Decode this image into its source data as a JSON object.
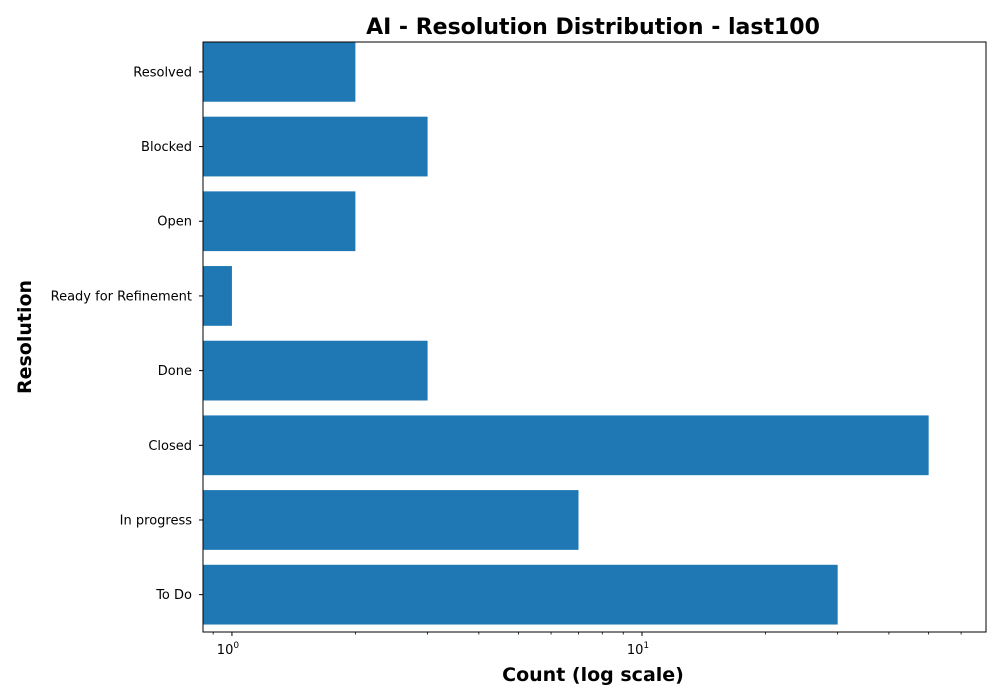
{
  "chart_data": {
    "type": "bar",
    "orientation": "horizontal",
    "title": "AI - Resolution Distribution - last100",
    "xlabel": "Count (log scale)",
    "ylabel": "Resolution",
    "xscale": "log",
    "xlim": [
      0.85,
      69
    ],
    "categories": [
      "To Do",
      "In progress",
      "Closed",
      "Done",
      "Ready for Refinement",
      "Open",
      "Blocked",
      "Resolved"
    ],
    "values": [
      30,
      7,
      50,
      3,
      1,
      2,
      3,
      2
    ],
    "bar_color": "#1f77b4",
    "x_major_ticks": [
      {
        "value": 1,
        "base": "10",
        "exp": "0"
      },
      {
        "value": 10,
        "base": "10",
        "exp": "1"
      }
    ],
    "grid": false,
    "legend": "none"
  }
}
